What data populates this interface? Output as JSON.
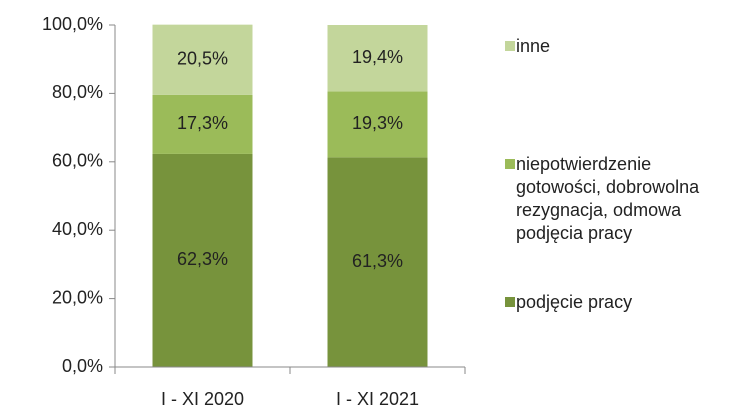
{
  "chart_data": {
    "type": "stacked_bar",
    "categories": [
      "I - XI 2020",
      "I - XI 2021"
    ],
    "series": [
      {
        "name": "podjęcie pracy",
        "color": "#77933c",
        "values": [
          62.3,
          61.3
        ],
        "value_labels": [
          "62,3%",
          "61,3%"
        ]
      },
      {
        "name": "niepotwierdzenie gotowości, dobrowolna rezygnacja, odmowa podjęcia pracy",
        "color": "#9bbb59",
        "values": [
          17.3,
          19.3
        ],
        "value_labels": [
          "17,3%",
          "19,3%"
        ]
      },
      {
        "name": "inne",
        "color": "#c3d69b",
        "values": [
          20.5,
          19.4
        ],
        "value_labels": [
          "20,5%",
          "19,4%"
        ]
      }
    ],
    "ylim": [
      0,
      100
    ],
    "yticks": [
      {
        "value": 0,
        "label": "0,0%"
      },
      {
        "value": 20,
        "label": "20,0%"
      },
      {
        "value": 40,
        "label": "40,0%"
      },
      {
        "value": 60,
        "label": "60,0%"
      },
      {
        "value": 80,
        "label": "80,0%"
      },
      {
        "value": 100,
        "label": "100,0%"
      }
    ],
    "legend": "right"
  }
}
